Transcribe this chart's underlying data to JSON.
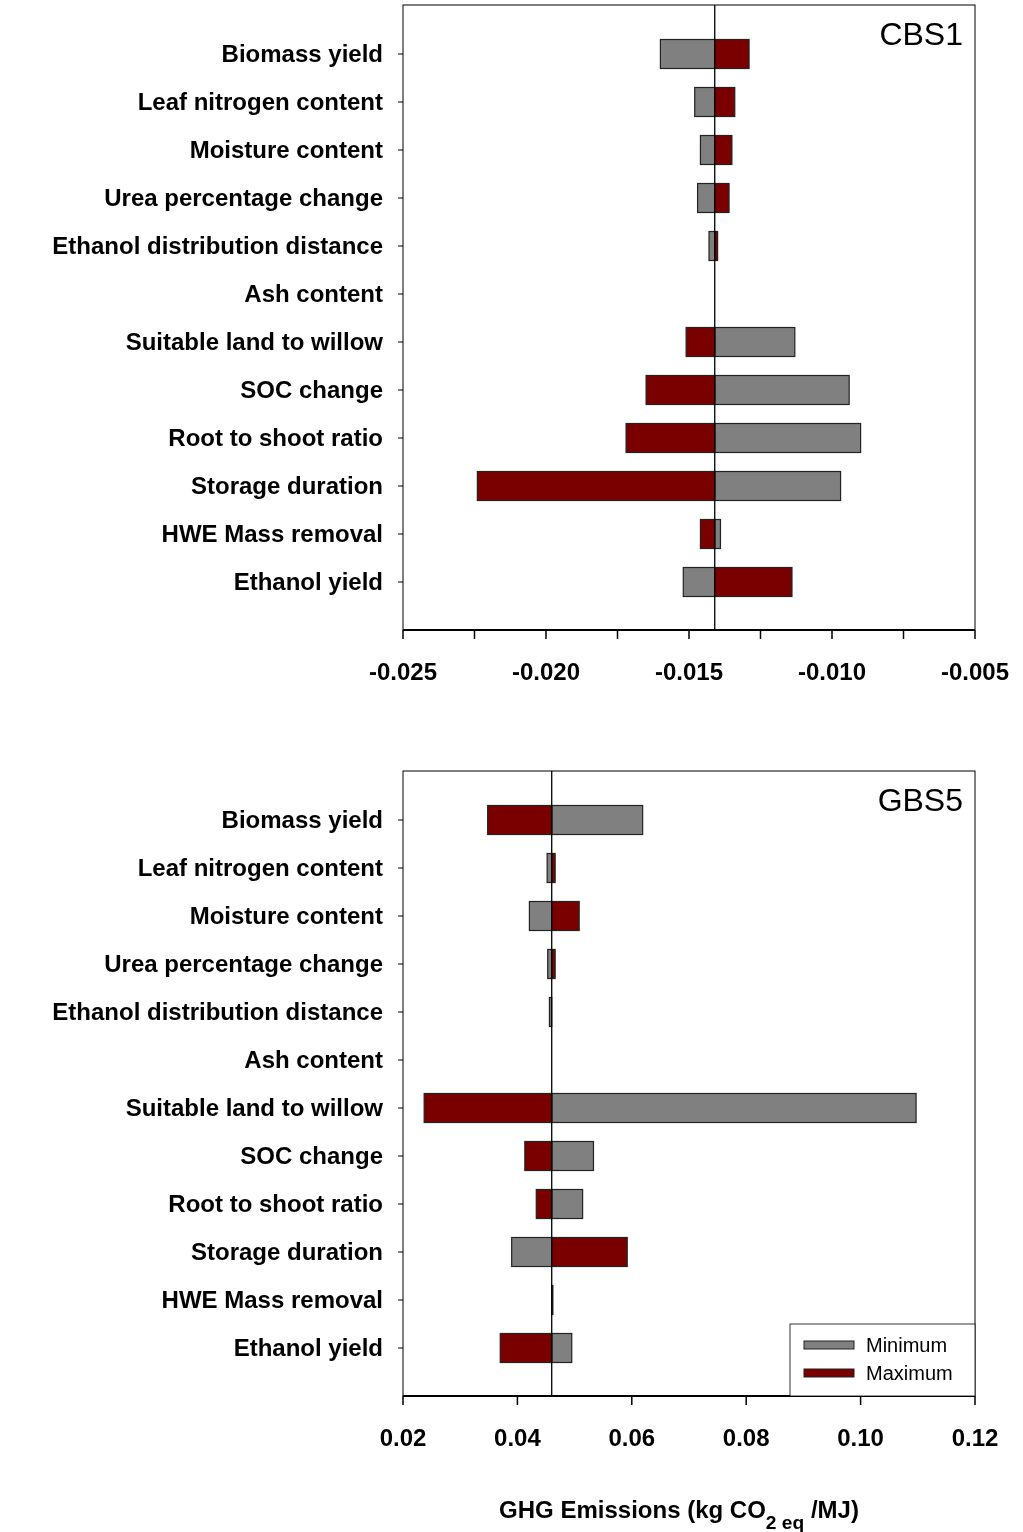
{
  "chart_data": [
    {
      "type": "bar",
      "orientation": "horizontal",
      "title": "CBS1",
      "categories": [
        "Biomass yield",
        "Leaf nitrogen content",
        "Moisture content",
        "Urea percentage change",
        "Ethanol distribution distance",
        "Ash content",
        "Suitable land to willow",
        "SOC change",
        "Root to shoot ratio",
        "Storage duration",
        "HWE Mass removal",
        "Ethanol yield"
      ],
      "series": [
        {
          "color": "#808080",
          "base": [
            -0.0141,
            -0.0141,
            -0.0141,
            -0.0141,
            -0.0141,
            null,
            -0.0141,
            -0.0141,
            -0.0141,
            -0.0141,
            -0.0141,
            -0.0141
          ],
          "values": [
            -0.0019,
            -0.0007,
            -0.0005,
            -0.0006,
            -0.0002,
            null,
            0.0028,
            0.0047,
            0.0051,
            0.0044,
            0.0002,
            -0.0011
          ]
        },
        {
          "color": "#7a0000",
          "base": [
            -0.0141,
            -0.0141,
            -0.0141,
            -0.0141,
            -0.0141,
            null,
            -0.0141,
            -0.0141,
            -0.0141,
            -0.0141,
            -0.0141,
            -0.0141
          ],
          "values": [
            0.0012,
            0.0007,
            0.0006,
            0.0005,
            0.0001,
            null,
            -0.001,
            -0.0024,
            -0.0031,
            -0.0083,
            -0.0005,
            0.0027
          ]
        }
      ],
      "xlim": [
        -0.025,
        -0.005
      ],
      "xticks": [
        -0.025,
        {
          "value": -0.0225,
          "label": null
        },
        {
          "value": -0.02,
          "label": "-0.020"
        },
        {
          "value": -0.0175,
          "label": null
        },
        -0.015,
        {
          "value": -0.0125,
          "label": null
        },
        {
          "value": -0.01,
          "label": "-0.010"
        },
        {
          "value": -0.0075,
          "label": null
        },
        -0.005
      ],
      "ref_lines": [
        {
          "axis": "x",
          "value": -0.0141,
          "color": "#000000"
        }
      ],
      "legend": false
    },
    {
      "type": "bar",
      "orientation": "horizontal",
      "title": "GBS5",
      "xlabel": "GHG Emissions (kg CO$_{2 eq}$ /MJ)",
      "categories": [
        "Biomass yield",
        "Leaf nitrogen content",
        "Moisture content",
        "Urea percentage change",
        "Ethanol distribution distance",
        "Ash content",
        "Suitable land to willow",
        "SOC change",
        "Root to shoot ratio",
        "Storage duration",
        "HWE Mass removal",
        "Ethanol yield"
      ],
      "series": [
        {
          "name": "Minimum",
          "color": "#808080",
          "base": [
            0.046,
            0.046,
            0.046,
            0.046,
            0.046,
            null,
            0.046,
            0.046,
            0.046,
            0.046,
            0.046,
            0.046
          ],
          "values": [
            0.0159,
            -0.0008,
            -0.0039,
            -0.0007,
            -0.0004,
            null,
            0.0637,
            0.0073,
            0.0054,
            -0.007,
            0.0002,
            0.0035
          ]
        },
        {
          "name": "Maximum",
          "color": "#7a0000",
          "base": [
            0.046,
            0.046,
            0.046,
            0.046,
            null,
            null,
            0.046,
            0.046,
            0.046,
            0.046,
            null,
            0.046
          ],
          "values": [
            -0.0112,
            0.0006,
            0.0048,
            0.0006,
            null,
            null,
            -0.0223,
            -0.0047,
            -0.0027,
            0.0132,
            null,
            -0.009
          ]
        }
      ],
      "xlim": [
        0.02,
        0.12
      ],
      "xticks": [
        0.02,
        0.04,
        0.06,
        0.08,
        {
          "value": 0.1,
          "label": "0.10"
        },
        0.12
      ],
      "ref_lines": [
        {
          "axis": "x",
          "value": 0.046,
          "color": "#000000"
        }
      ],
      "legend": "bottom right"
    }
  ]
}
